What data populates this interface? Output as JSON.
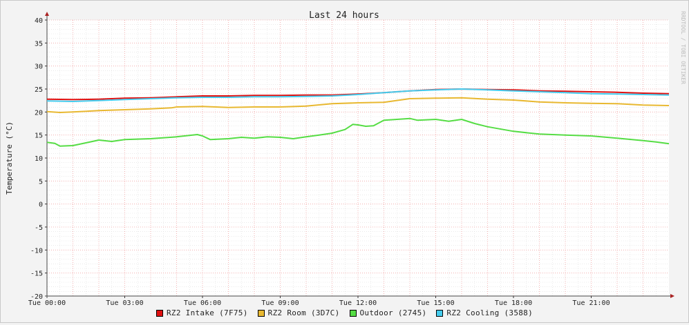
{
  "chart_data": {
    "type": "line",
    "title": "Last 24 hours",
    "ylabel": "Temperature (°C)",
    "watermark": "RRDTOOL / TOBI OETIKER",
    "ylim": [
      -20,
      40
    ],
    "yticks": [
      -20,
      -15,
      -10,
      -5,
      0,
      5,
      10,
      15,
      20,
      25,
      30,
      35,
      40
    ],
    "xlim": [
      0,
      24
    ],
    "xticks": [
      {
        "x": 0,
        "label": "Tue 00:00"
      },
      {
        "x": 3,
        "label": "Tue 03:00"
      },
      {
        "x": 6,
        "label": "Tue 06:00"
      },
      {
        "x": 9,
        "label": "Tue 09:00"
      },
      {
        "x": 12,
        "label": "Tue 12:00"
      },
      {
        "x": 15,
        "label": "Tue 15:00"
      },
      {
        "x": 18,
        "label": "Tue 18:00"
      },
      {
        "x": 21,
        "label": "Tue 21:00"
      }
    ],
    "grid": true,
    "legend_position": "bottom",
    "series": [
      {
        "name": "RZ2 Intake (7F75)",
        "color": "#e01010",
        "x": [
          0,
          1,
          2,
          3,
          4,
          5,
          6,
          7,
          8,
          9,
          10,
          11,
          12,
          13,
          14,
          15,
          16,
          17,
          18,
          19,
          20,
          21,
          22,
          23,
          24
        ],
        "y": [
          22.8,
          22.7,
          22.8,
          23.0,
          23.1,
          23.3,
          23.5,
          23.5,
          23.6,
          23.6,
          23.7,
          23.7,
          23.9,
          24.2,
          24.6,
          24.9,
          25.0,
          24.9,
          24.8,
          24.6,
          24.5,
          24.4,
          24.3,
          24.1,
          24.0
        ]
      },
      {
        "name": "RZ2 Room (3D7C)",
        "color": "#e8b830",
        "x": [
          0,
          0.5,
          1,
          2,
          3,
          4,
          4.8,
          5,
          6,
          6.5,
          7,
          8,
          9,
          10,
          11,
          12,
          13,
          14,
          15,
          16,
          17,
          18,
          19,
          20,
          21,
          22,
          23,
          24
        ],
        "y": [
          20.1,
          19.9,
          20.0,
          20.3,
          20.5,
          20.7,
          20.9,
          21.1,
          21.2,
          21.1,
          21.0,
          21.1,
          21.1,
          21.3,
          21.8,
          22.0,
          22.1,
          22.9,
          23.0,
          23.1,
          22.8,
          22.6,
          22.2,
          22.0,
          21.9,
          21.8,
          21.5,
          21.4
        ]
      },
      {
        "name": "Outdoor (2745)",
        "color": "#55dd44",
        "x": [
          0,
          0.3,
          0.5,
          1,
          1.5,
          2,
          2.5,
          3,
          4,
          5,
          5.8,
          6,
          6.3,
          7,
          7.5,
          8,
          8.5,
          9,
          9.5,
          10,
          10.5,
          11,
          11.5,
          11.8,
          12,
          12.3,
          12.6,
          13,
          13.5,
          14,
          14.3,
          15,
          15.5,
          16,
          16.5,
          17,
          18,
          19,
          20,
          21,
          22,
          23,
          23.5,
          24
        ],
        "y": [
          13.4,
          13.2,
          12.6,
          12.7,
          13.3,
          13.9,
          13.6,
          14.0,
          14.2,
          14.6,
          15.1,
          14.8,
          14.0,
          14.2,
          14.5,
          14.3,
          14.6,
          14.5,
          14.2,
          14.6,
          15.0,
          15.4,
          16.2,
          17.3,
          17.2,
          16.9,
          17.0,
          18.2,
          18.4,
          18.6,
          18.2,
          18.4,
          18.0,
          18.4,
          17.5,
          16.8,
          15.8,
          15.2,
          15.0,
          14.8,
          14.3,
          13.8,
          13.5,
          13.1
        ]
      },
      {
        "name": "RZ2 Cooling (3588)",
        "color": "#44ccee",
        "x": [
          0,
          1,
          2,
          3,
          4,
          5,
          6,
          7,
          8,
          9,
          10,
          11,
          12,
          13,
          14,
          15,
          16,
          17,
          18,
          19,
          20,
          21,
          22,
          23,
          24
        ],
        "y": [
          22.4,
          22.3,
          22.5,
          22.7,
          22.9,
          23.1,
          23.2,
          23.2,
          23.3,
          23.3,
          23.4,
          23.5,
          23.8,
          24.2,
          24.6,
          24.8,
          25.0,
          24.8,
          24.6,
          24.4,
          24.2,
          24.0,
          23.9,
          23.8,
          23.7
        ]
      }
    ]
  }
}
